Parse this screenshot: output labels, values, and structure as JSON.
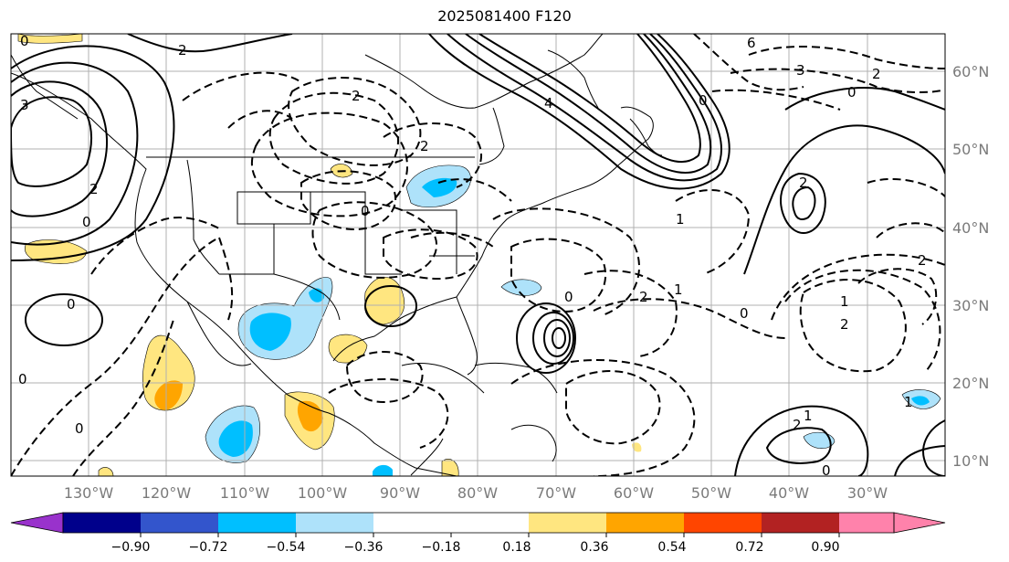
{
  "title": "2025081400 F120",
  "longitude_ticks": [
    "130°W",
    "120°W",
    "110°W",
    "100°W",
    "90°W",
    "80°W",
    "70°W",
    "60°W",
    "50°W",
    "40°W",
    "30°W"
  ],
  "latitude_ticks": [
    "60°N",
    "50°N",
    "40°N",
    "30°N",
    "20°N",
    "10°N"
  ],
  "colorbar": {
    "tick_labels": [
      "−0.90",
      "−0.72",
      "−0.54",
      "−0.36",
      "−0.18",
      "0.18",
      "0.36",
      "0.54",
      "0.72",
      "0.90"
    ],
    "colors": [
      "#9932cc",
      "#00008b",
      "#3355cc",
      "#00bfff",
      "#aee2fa",
      "#ffffff",
      "#ffe680",
      "#ffa500",
      "#ff4500",
      "#b22222",
      "#ff82ab"
    ],
    "extend": "both"
  },
  "contour_labels": [
    "0",
    "2",
    "6",
    "3",
    "2",
    "0",
    "4",
    "3",
    "0",
    "2",
    "2",
    "2",
    "0",
    "1",
    "2",
    "0",
    "0",
    "2",
    "0",
    "1",
    "2",
    "1",
    "0",
    "2",
    "1",
    "2",
    "1",
    "0",
    "0",
    "0"
  ],
  "colors": {
    "grid": "#b0b0b0",
    "coast": "#000000",
    "contour": "#000000",
    "blue_fill": "#00bfff",
    "light_blue_fill": "#aee2fa",
    "yellow_fill": "#ffe680",
    "orange_fill": "#ffa500"
  }
}
